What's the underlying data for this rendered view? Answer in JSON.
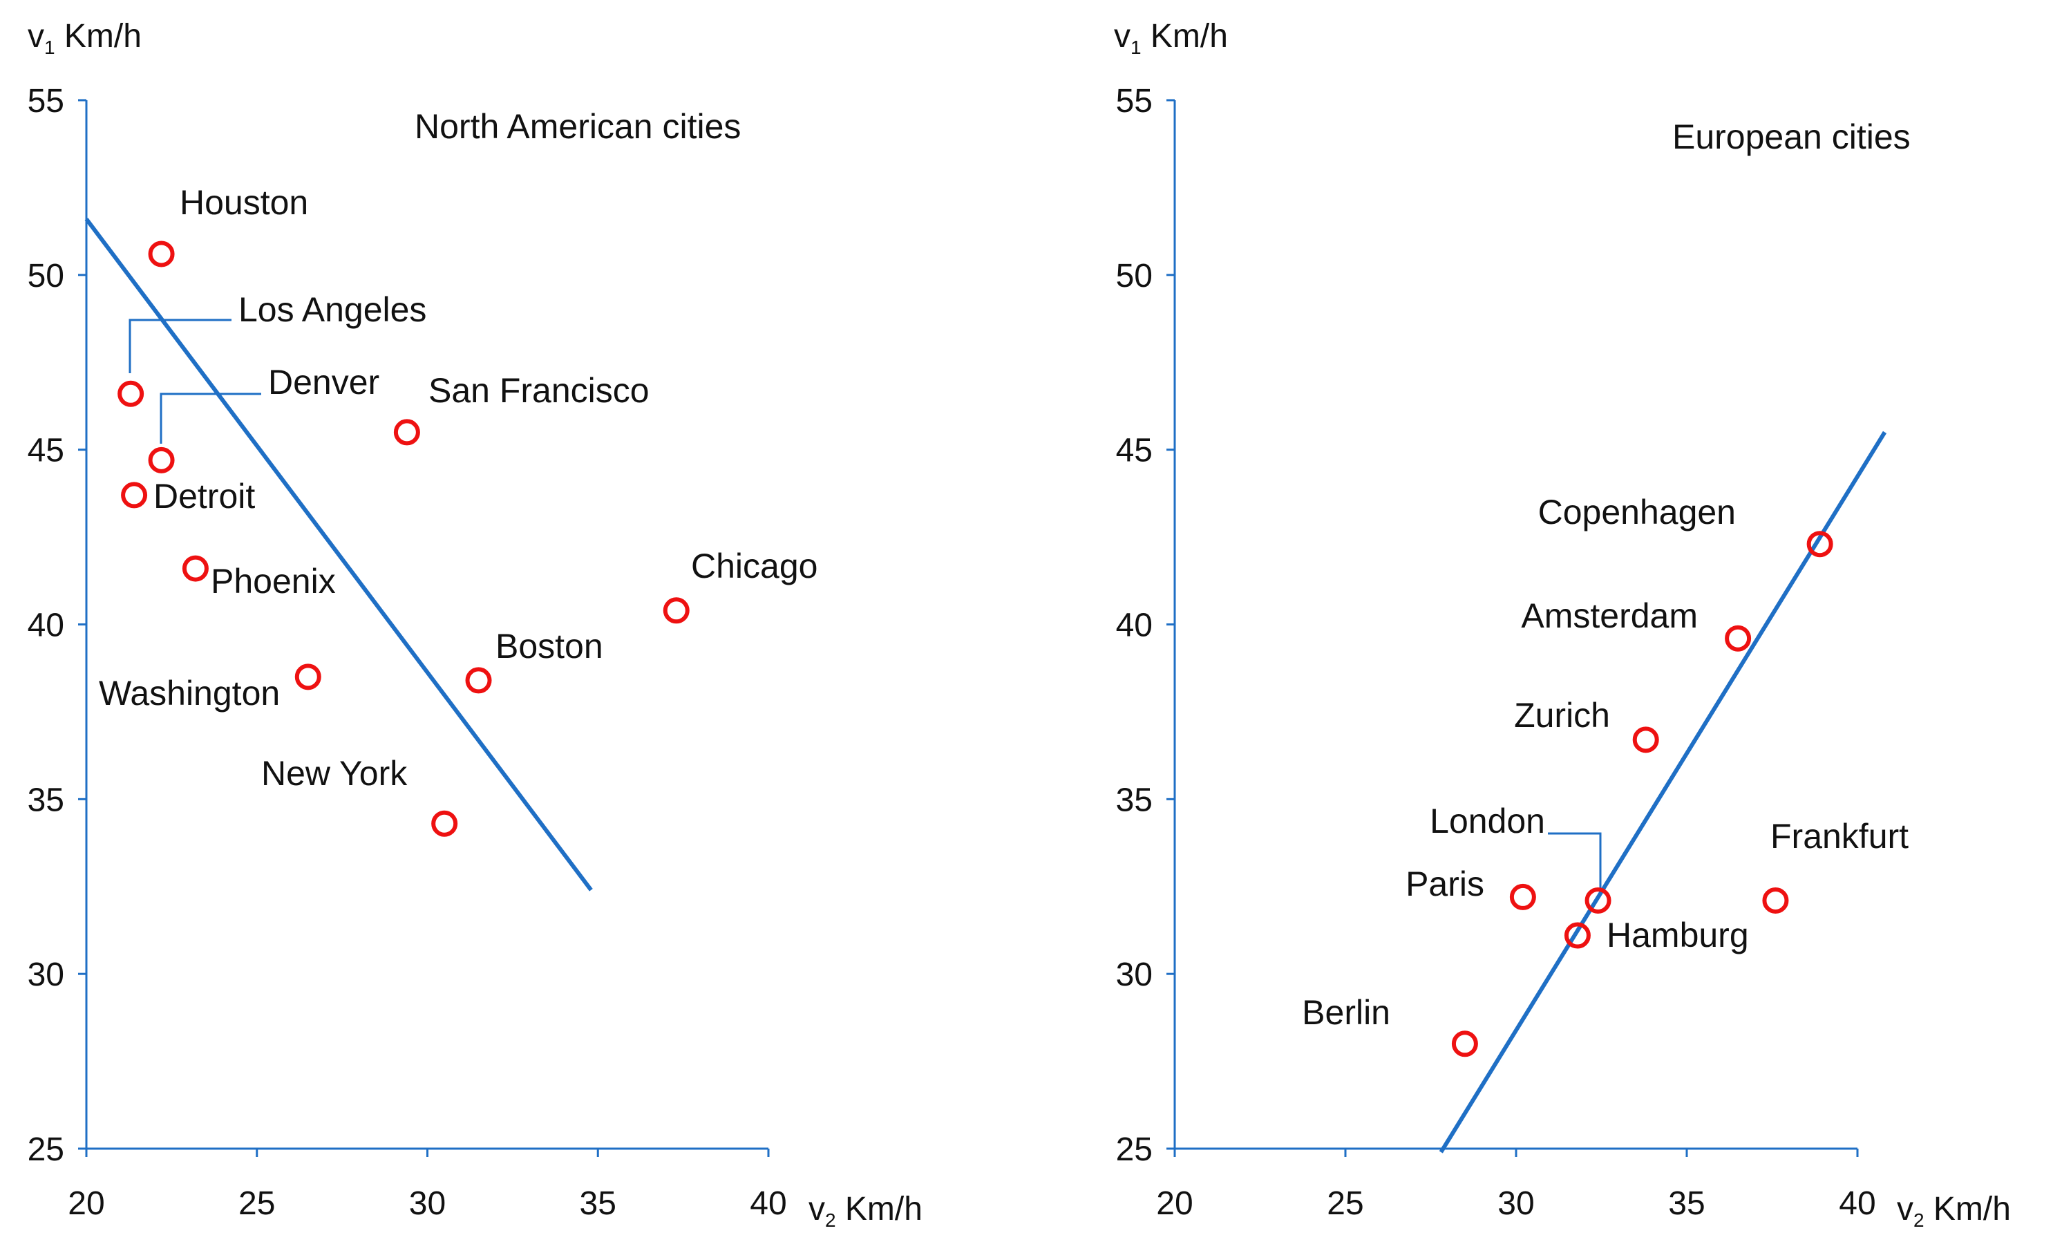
{
  "style": {
    "axis_color": "#1f6fc5",
    "point_color": "#ee1111",
    "trend_color": "#1f6fc5"
  },
  "chart_data": [
    {
      "type": "scatter",
      "title": "North American cities",
      "xlabel": {
        "main": "v",
        "sub": "2",
        "unit": " Km/h"
      },
      "ylabel": {
        "main": "v",
        "sub": "1",
        "unit": " Km/h"
      },
      "xlim": [
        20,
        40
      ],
      "ylim": [
        25,
        55
      ],
      "xticks": [
        20,
        25,
        30,
        35,
        40
      ],
      "yticks": [
        25,
        30,
        35,
        40,
        45,
        50,
        55
      ],
      "trend_line": [
        [
          20,
          51.6
        ],
        [
          34.8,
          32.4
        ]
      ],
      "points": [
        {
          "label": "Houston",
          "x": 22.2,
          "y": 50.6
        },
        {
          "label": "Los Angeles",
          "x": 21.3,
          "y": 46.6
        },
        {
          "label": "Denver",
          "x": 22.2,
          "y": 44.7
        },
        {
          "label": "San Francisco",
          "x": 29.4,
          "y": 45.5
        },
        {
          "label": "Detroit",
          "x": 21.4,
          "y": 43.7
        },
        {
          "label": "Phoenix",
          "x": 23.2,
          "y": 41.6
        },
        {
          "label": "Chicago",
          "x": 37.3,
          "y": 40.4
        },
        {
          "label": "Washington",
          "x": 26.5,
          "y": 38.5
        },
        {
          "label": "Boston",
          "x": 31.5,
          "y": 38.4
        },
        {
          "label": "New York",
          "x": 30.5,
          "y": 34.3
        }
      ]
    },
    {
      "type": "scatter",
      "title": "European cities",
      "xlabel": {
        "main": "v",
        "sub": "2",
        "unit": " Km/h"
      },
      "ylabel": {
        "main": "v",
        "sub": "1",
        "unit": " Km/h"
      },
      "xlim": [
        20,
        40
      ],
      "ylim": [
        25,
        55
      ],
      "xticks": [
        20,
        25,
        30,
        35,
        40
      ],
      "yticks": [
        25,
        30,
        35,
        40,
        45,
        50,
        55
      ],
      "trend_line": [
        [
          27.8,
          24.9
        ],
        [
          40.8,
          45.5
        ]
      ],
      "points": [
        {
          "label": "Copenhagen",
          "x": 38.9,
          "y": 42.3
        },
        {
          "label": "Amsterdam",
          "x": 36.5,
          "y": 39.6
        },
        {
          "label": "Zurich",
          "x": 33.8,
          "y": 36.7
        },
        {
          "label": "London",
          "x": 32.4,
          "y": 32.1
        },
        {
          "label": "Paris",
          "x": 30.2,
          "y": 32.2
        },
        {
          "label": "Frankfurt",
          "x": 37.6,
          "y": 32.1
        },
        {
          "label": "Hamburg",
          "x": 31.8,
          "y": 31.1
        },
        {
          "label": "Berlin",
          "x": 28.5,
          "y": 28.0
        }
      ]
    }
  ]
}
